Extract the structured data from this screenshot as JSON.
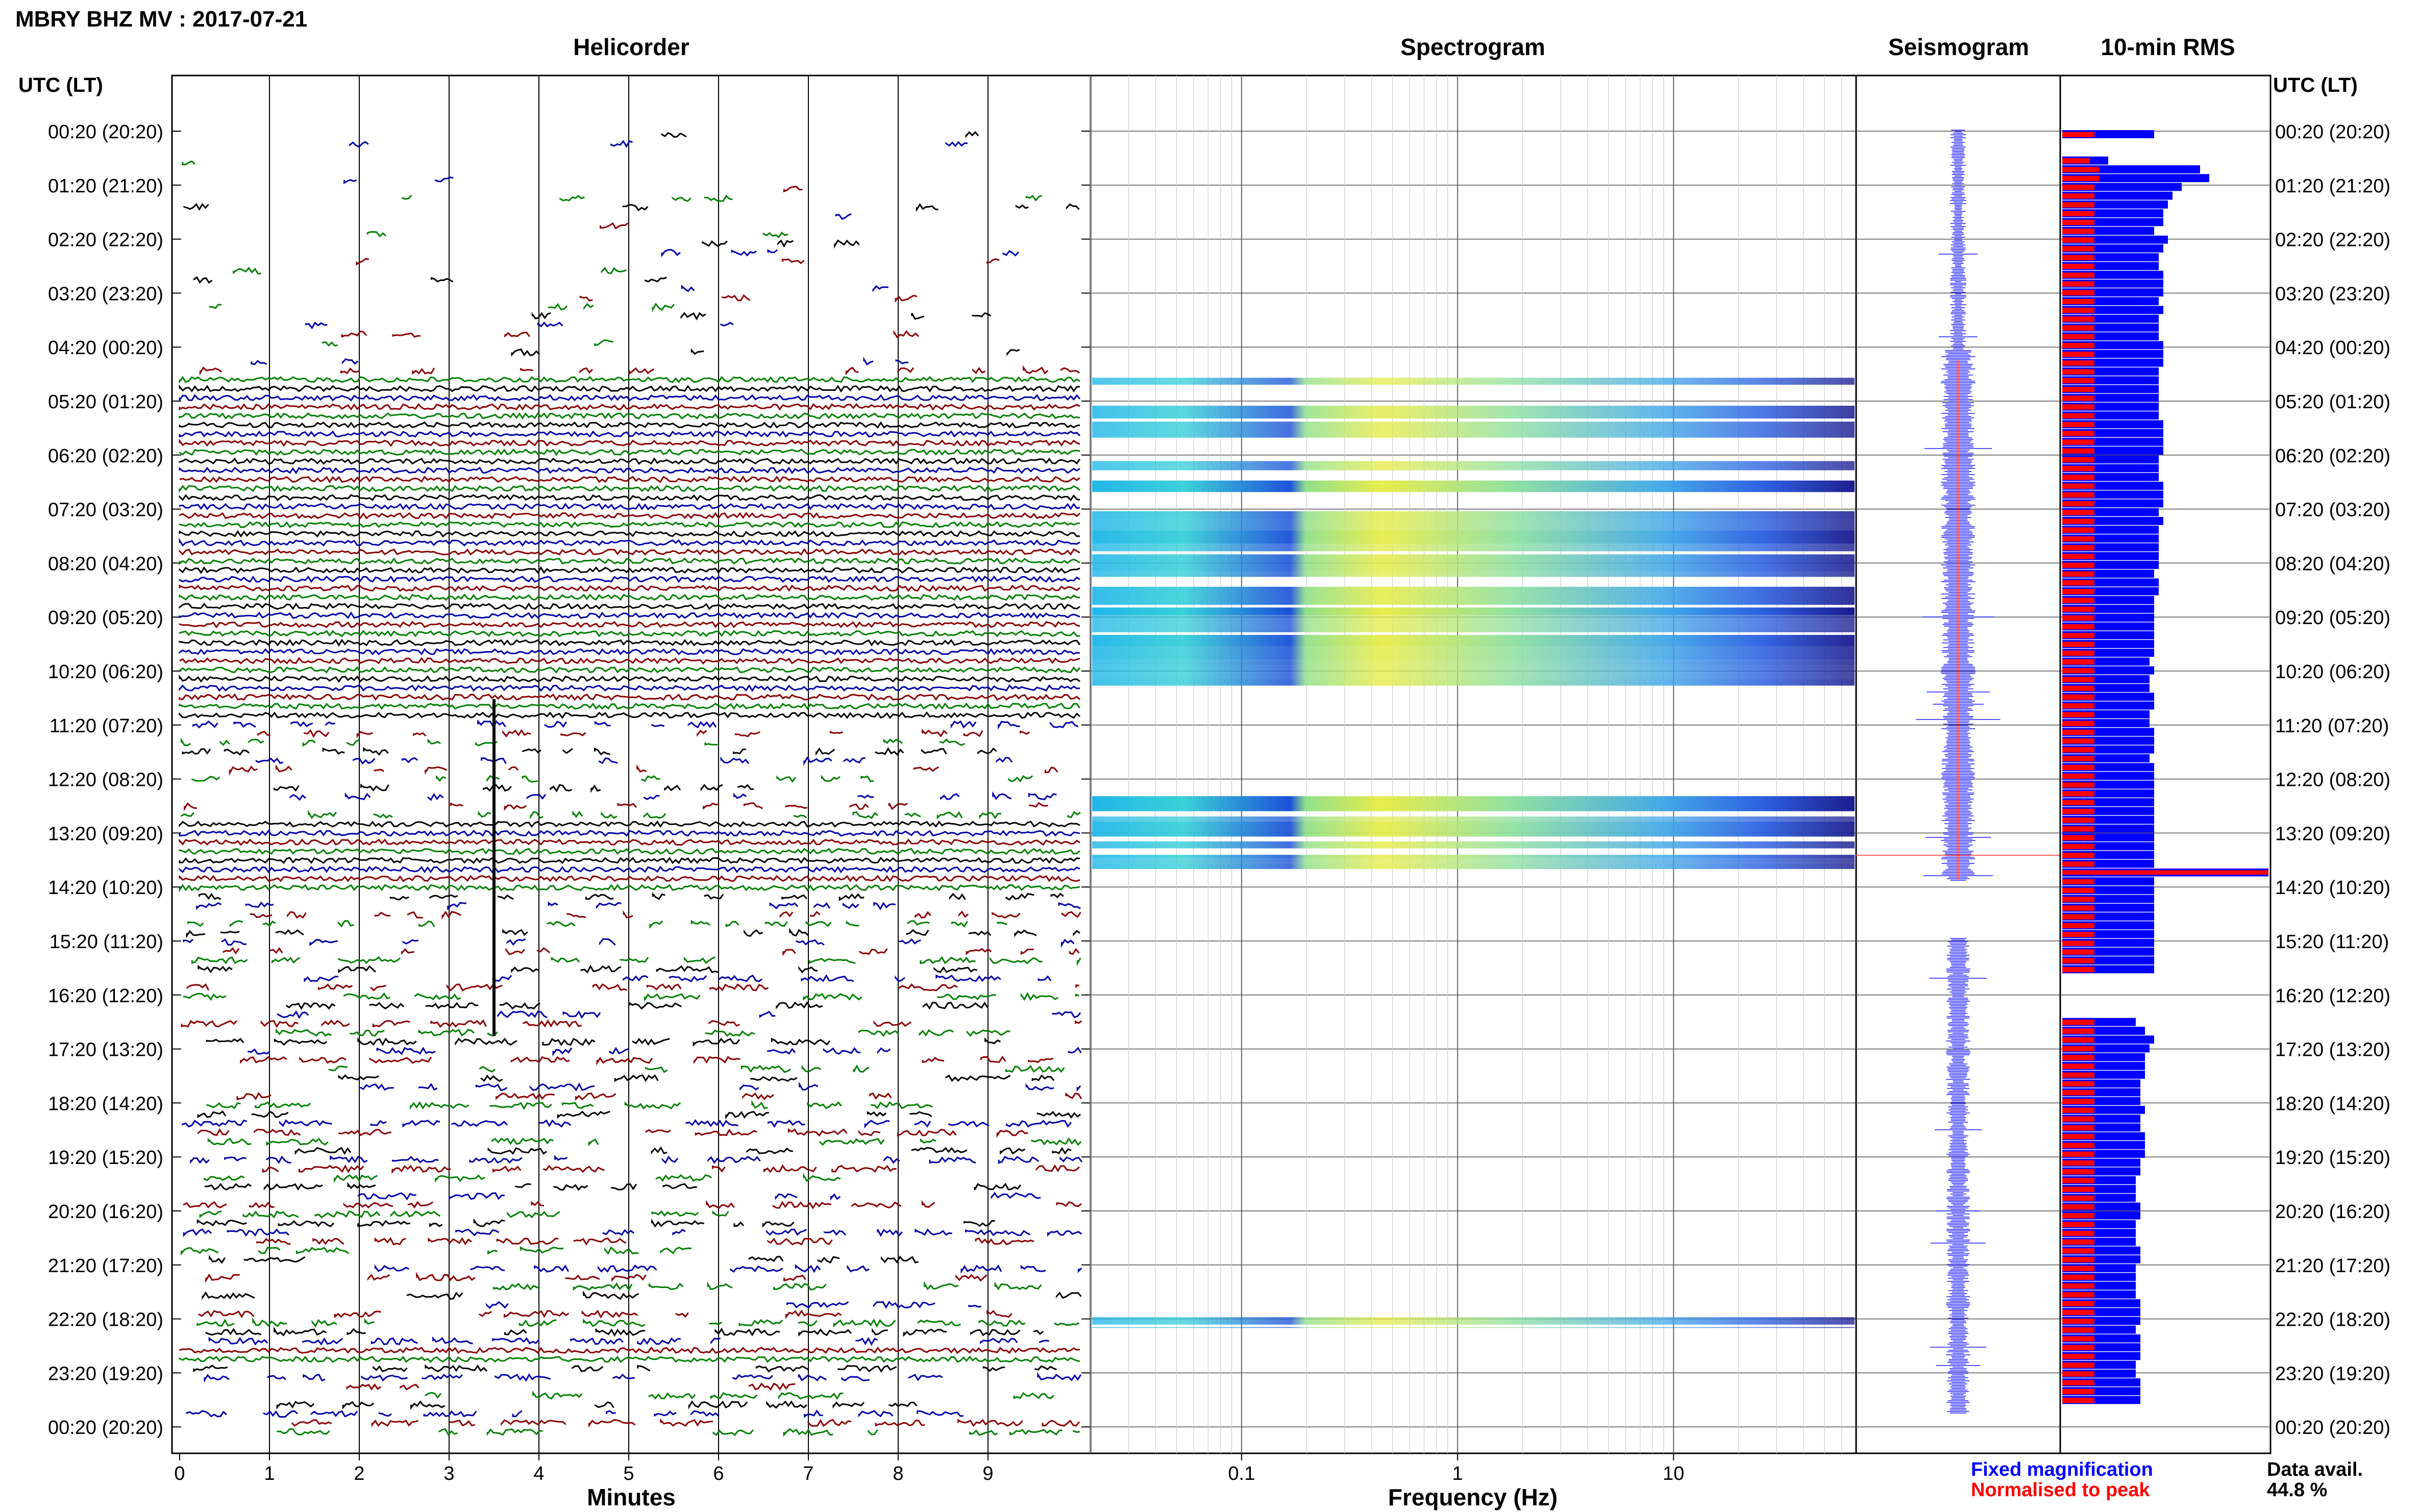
{
  "page_title": "MBRY BHZ MV : 2017-07-21",
  "panels": {
    "helicorder": "Helicorder",
    "spectrogram": "Spectrogram",
    "seismogram": "Seismogram",
    "rms": "10-min RMS"
  },
  "time_axis_label": "UTC (LT)",
  "time_ticks": [
    "00:20 (20:20)",
    "01:20 (21:20)",
    "02:20 (22:20)",
    "03:20 (23:20)",
    "04:20 (00:20)",
    "05:20 (01:20)",
    "06:20 (02:20)",
    "07:20 (03:20)",
    "08:20 (04:20)",
    "09:20 (05:20)",
    "10:20 (06:20)",
    "11:20 (07:20)",
    "12:20 (08:20)",
    "13:20 (09:20)",
    "14:20 (10:20)",
    "15:20 (11:20)",
    "16:20 (12:20)",
    "17:20 (13:20)",
    "18:20 (14:20)",
    "19:20 (15:20)",
    "20:20 (16:20)",
    "21:20 (17:20)",
    "22:20 (18:20)",
    "23:20 (19:20)",
    "00:20 (20:20)"
  ],
  "helicorder": {
    "xlabel": "Minutes",
    "x_ticks": [
      "0",
      "1",
      "2",
      "3",
      "4",
      "5",
      "6",
      "7",
      "8",
      "9"
    ],
    "trace_colors": [
      "#000000",
      "#0000aa",
      "#8b0000",
      "#008000"
    ]
  },
  "spectrogram": {
    "xlabel": "Frequency (Hz)",
    "x_ticks": [
      "0.1",
      "1",
      "10"
    ],
    "x_scale": "log",
    "xlim": [
      0.02,
      70
    ],
    "active_bands_utc": [
      [
        4.45,
        10.7
      ],
      [
        12.65,
        14.0
      ],
      [
        22.3,
        22.5
      ]
    ]
  },
  "legend": {
    "fixed": "Fixed magnification",
    "normalised": "Normalised to peak",
    "fixed_color": "#0000ff",
    "normalised_color": "#ff0000"
  },
  "availability": {
    "label": "Data avail.",
    "value": "44.8 %"
  },
  "chart_data": {
    "type": "bar",
    "title": "10-min RMS",
    "categories_note": "10-minute windows starting 00:20 UTC",
    "series": [
      {
        "name": "Fixed magnification",
        "values": [
          18,
          0,
          30,
          27,
          24,
          23,
          22,
          20,
          21,
          21,
          22,
          21,
          19,
          20,
          21,
          22,
          21,
          22,
          20,
          21,
          22,
          22,
          22,
          21,
          21,
          22,
          22,
          21,
          21,
          21,
          21,
          21,
          21,
          22,
          21,
          22,
          22,
          21,
          21,
          22,
          21,
          22,
          22,
          21,
          22,
          21,
          22,
          21,
          21,
          21,
          21,
          22,
          21,
          21,
          21,
          21,
          20,
          20,
          20,
          20,
          20,
          21,
          20,
          20,
          20,
          20,
          20,
          20,
          20,
          21,
          21,
          20,
          21,
          20,
          0,
          0,
          0,
          0,
          0,
          0,
          0,
          0,
          0,
          0,
          0,
          0,
          0,
          0,
          0,
          0,
          0,
          0,
          0,
          0,
          0,
          0,
          0,
          0,
          0,
          0,
          0,
          0,
          0,
          0,
          0,
          0,
          0,
          0,
          0,
          0,
          0,
          0,
          0,
          0,
          0,
          0,
          0,
          0,
          0,
          0,
          0,
          0,
          0,
          0,
          0,
          0,
          0,
          0,
          0,
          0,
          0,
          0,
          0,
          0,
          0,
          0,
          0,
          0,
          0,
          0,
          0,
          0,
          0,
          0,
          0,
          0,
          0,
          0
        ]
      },
      {
        "name": "Normalised to peak",
        "values": [
          8,
          0,
          10,
          9,
          8,
          8,
          8,
          8,
          8,
          8,
          8,
          8,
          8,
          8,
          8,
          8,
          8,
          8,
          8,
          8,
          8,
          8,
          8,
          8,
          8,
          8,
          8,
          8,
          8,
          8,
          8,
          8,
          8,
          8,
          8,
          8,
          8,
          8,
          8,
          8,
          8,
          8,
          8,
          8,
          8,
          8,
          8,
          8,
          8,
          8,
          8,
          8,
          8,
          8,
          8,
          8,
          8,
          8,
          8,
          8,
          8,
          8,
          8,
          8,
          8,
          8,
          8,
          8,
          8,
          8,
          8,
          8,
          8,
          8,
          0,
          0,
          0,
          0,
          0,
          0,
          0,
          0,
          0,
          0,
          0,
          0,
          0,
          0,
          0,
          0,
          0,
          0,
          0,
          0,
          0,
          0,
          0,
          0,
          0,
          0,
          0,
          0,
          0,
          0,
          0,
          0,
          0,
          0,
          0,
          0,
          0,
          0,
          0,
          0,
          0,
          0,
          0,
          0,
          0,
          0,
          0,
          0,
          0,
          0,
          0,
          0,
          0,
          0,
          0,
          0,
          0,
          0,
          0,
          0,
          0,
          0,
          0,
          0,
          0,
          0,
          0,
          0,
          0,
          0,
          0,
          0,
          0,
          0
        ]
      }
    ],
    "rms_profile": {
      "note": "approximate RMS bar lengths (fixed magnification, relative units) per 10-min window, 00:20 to 00:20",
      "fixed": [
        20,
        0,
        0,
        10,
        30,
        32,
        26,
        24,
        23,
        22,
        22,
        20,
        23,
        22,
        21,
        21,
        22,
        22,
        22,
        21,
        22,
        21,
        21,
        21,
        22,
        22,
        22,
        21,
        21,
        21,
        21,
        21,
        21,
        22,
        22,
        22,
        22,
        21,
        21,
        21,
        22,
        22,
        22,
        21,
        22,
        21,
        21,
        21,
        21,
        21,
        20,
        21,
        21,
        20,
        20,
        20,
        20,
        20,
        20,
        20,
        19,
        20,
        19,
        19,
        20,
        20,
        19,
        19,
        20,
        20,
        20,
        19,
        20,
        20,
        20,
        20,
        20,
        20,
        20,
        20,
        20,
        20,
        20,
        20,
        20,
        20,
        20,
        20,
        20,
        20,
        20,
        20,
        20,
        20,
        20,
        20,
        0,
        0,
        0,
        0,
        0,
        16,
        18,
        20,
        19,
        18,
        18,
        18,
        17,
        17,
        17,
        18,
        17,
        17,
        18,
        18,
        18,
        17,
        17,
        16,
        16,
        16,
        17,
        17,
        16,
        16,
        16,
        17,
        17,
        16,
        16,
        16,
        16,
        17,
        17,
        17,
        16,
        17,
        17,
        17,
        16,
        16,
        17,
        17,
        17,
        0
      ],
      "normalised": [
        7,
        0,
        0,
        6,
        8,
        8,
        7,
        7,
        7,
        7,
        7,
        7,
        7,
        7,
        7,
        7,
        7,
        7,
        7,
        7,
        7,
        7,
        7,
        7,
        7,
        7,
        7,
        7,
        7,
        7,
        7,
        7,
        7,
        7,
        7,
        7,
        7,
        7,
        7,
        7,
        7,
        7,
        7,
        7,
        7,
        7,
        7,
        7,
        7,
        7,
        7,
        7,
        7,
        7,
        7,
        7,
        7,
        7,
        7,
        7,
        7,
        7,
        7,
        7,
        7,
        7,
        7,
        7,
        7,
        7,
        7,
        7,
        7,
        7,
        7,
        7,
        7,
        7,
        7,
        7,
        7,
        7,
        7,
        7,
        7,
        7,
        7,
        7,
        7,
        7,
        7,
        7,
        7,
        7,
        7,
        7,
        0,
        0,
        0,
        0,
        0,
        7,
        7,
        7,
        7,
        7,
        7,
        7,
        7,
        7,
        7,
        7,
        7,
        7,
        7,
        7,
        7,
        7,
        7,
        7,
        7,
        7,
        7,
        7,
        7,
        7,
        7,
        7,
        7,
        7,
        7,
        7,
        7,
        7,
        7,
        7,
        7,
        7,
        7,
        7,
        7,
        7,
        7,
        7,
        7,
        0
      ],
      "peak_window_index": 84
    }
  }
}
